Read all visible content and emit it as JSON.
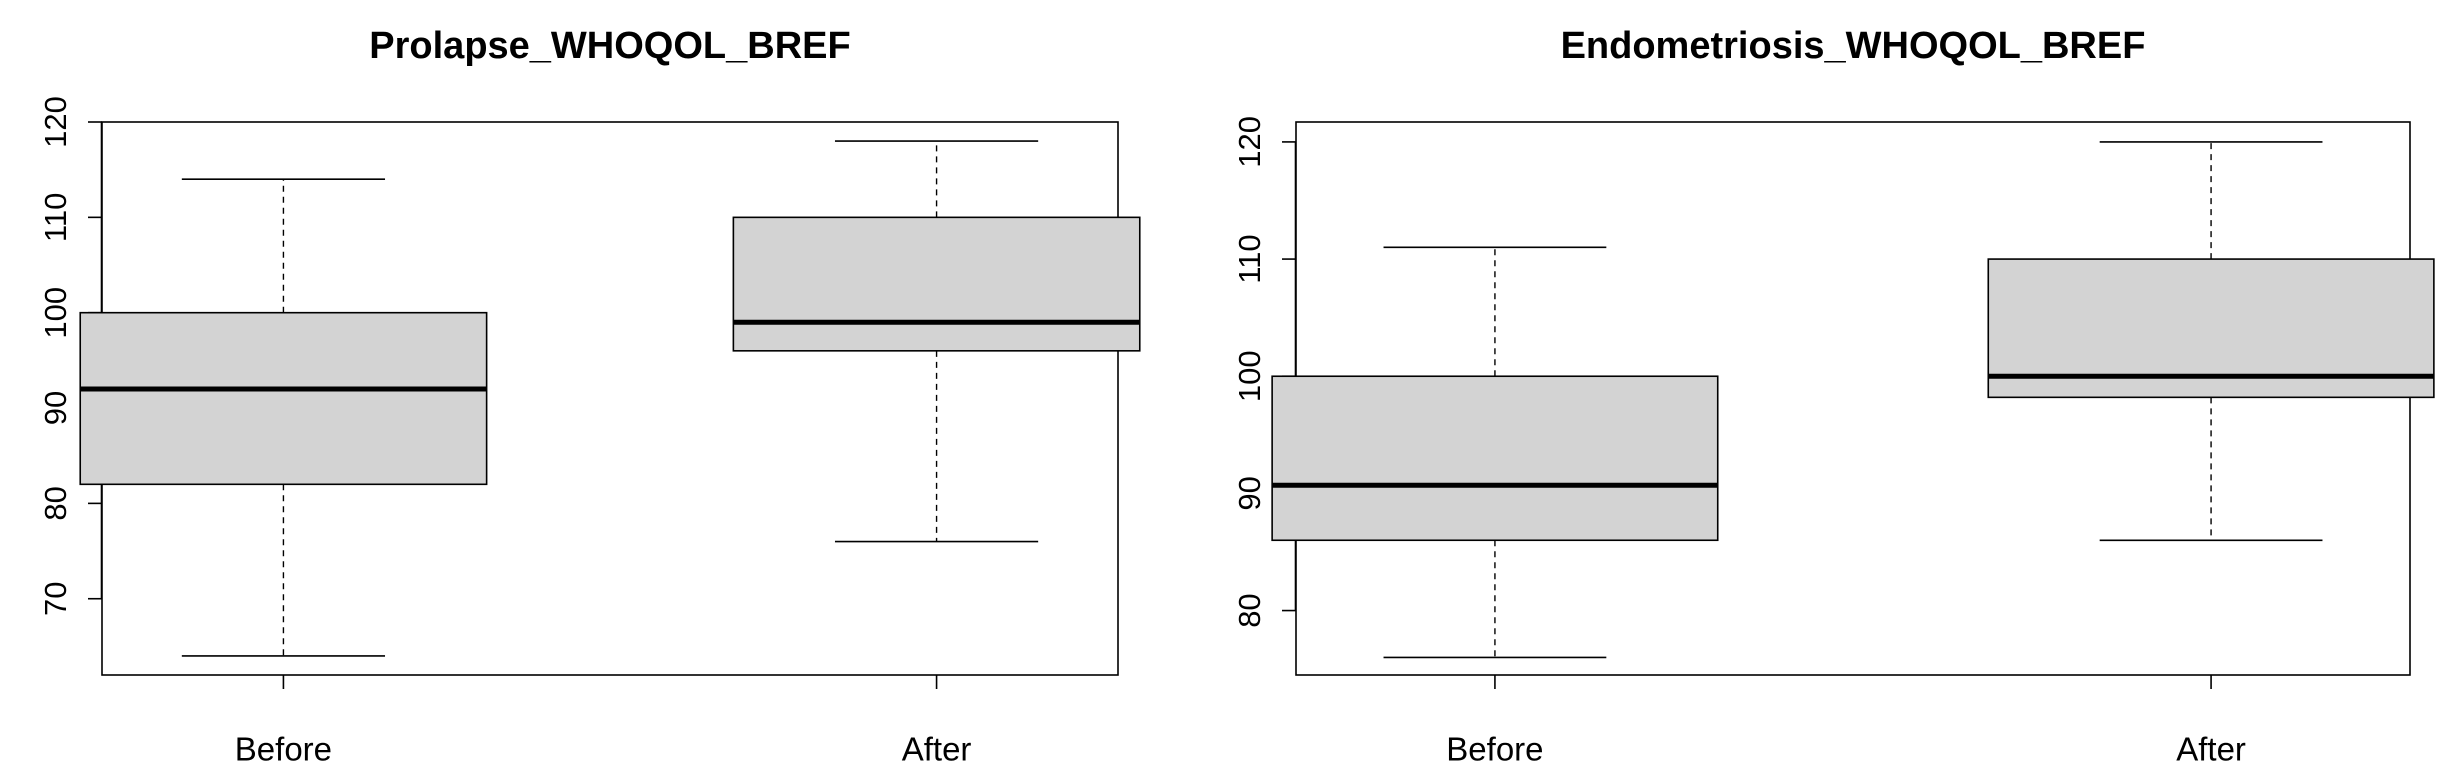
{
  "chart_data": [
    {
      "type": "box",
      "title": "Prolapse_WHOQOL_BREF",
      "categories": [
        "Before",
        "After"
      ],
      "yticks": [
        70,
        80,
        90,
        100,
        110,
        120
      ],
      "ylim": [
        62,
        120
      ],
      "boxes": [
        {
          "category": "Before",
          "min": 64,
          "q1": 82,
          "median": 92,
          "q3": 100,
          "max": 114
        },
        {
          "category": "After",
          "min": 76,
          "q1": 96,
          "median": 99,
          "q3": 110,
          "max": 118
        }
      ],
      "fill": "#d3d3d3",
      "grid": false
    },
    {
      "type": "box",
      "title": "Endometriosis_WHOQOL_BREF",
      "categories": [
        "Before",
        "After"
      ],
      "yticks": [
        80,
        90,
        100,
        110,
        120
      ],
      "ylim": [
        74.5,
        121.7
      ],
      "boxes": [
        {
          "category": "Before",
          "min": 76,
          "q1": 86,
          "median": 90.7,
          "q3": 100,
          "max": 111
        },
        {
          "category": "After",
          "min": 86,
          "q1": 98.2,
          "median": 100,
          "q3": 110,
          "max": 120
        }
      ],
      "fill": "#d3d3d3",
      "grid": false
    }
  ]
}
